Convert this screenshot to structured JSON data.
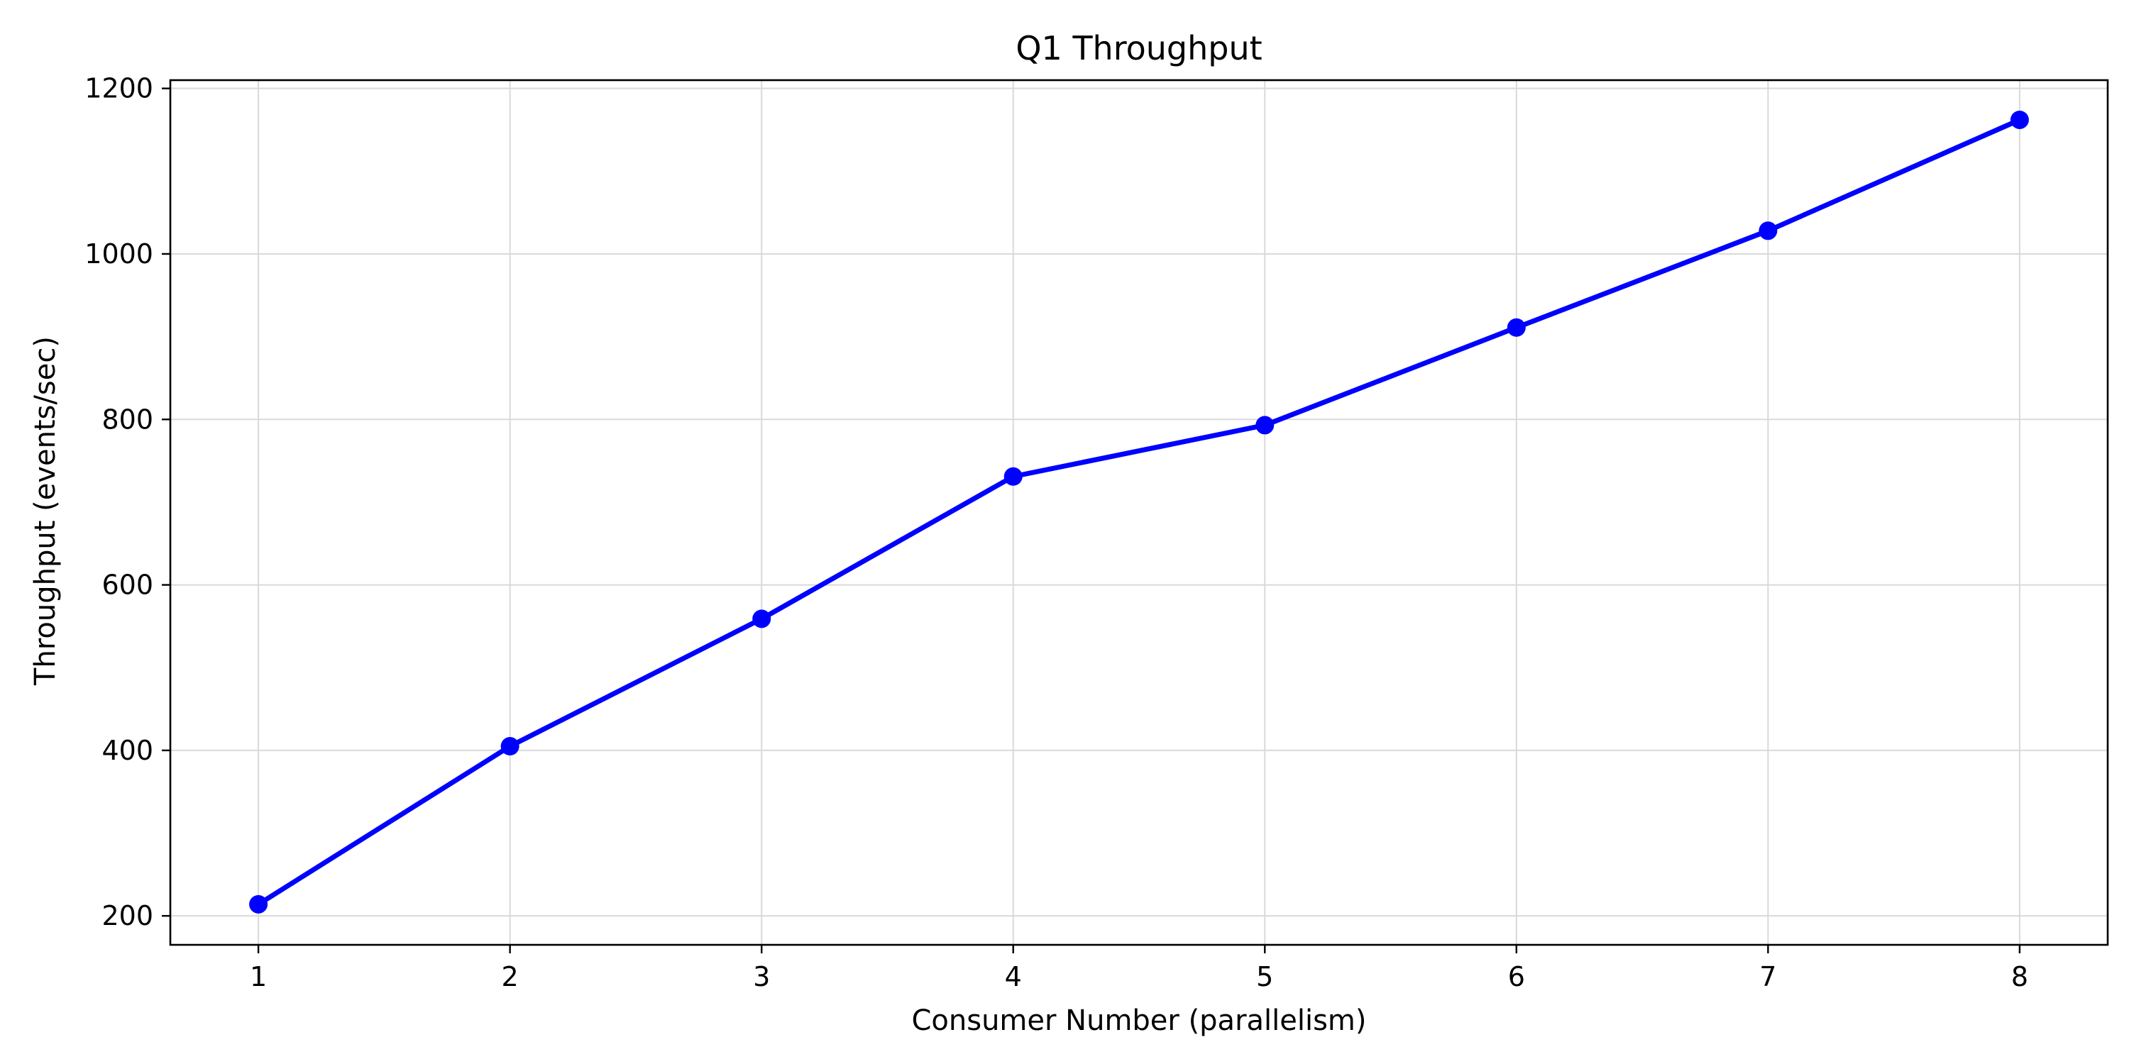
{
  "chart_data": {
    "type": "line",
    "title": "Q1 Throughput",
    "xlabel": "Consumer Number (parallelism)",
    "ylabel": "Throughput (events/sec)",
    "x": [
      1,
      2,
      3,
      4,
      5,
      6,
      7,
      8
    ],
    "series": [
      {
        "values": [
          214,
          405,
          559,
          731,
          793,
          911,
          1028,
          1162
        ],
        "color": "#0000ff",
        "marker": "circle"
      }
    ],
    "xlim": [
      0.65,
      8.35
    ],
    "ylim": [
      165,
      1210
    ],
    "xticks": [
      "1",
      "2",
      "3",
      "4",
      "5",
      "6",
      "7",
      "8"
    ],
    "yticks": [
      "200",
      "400",
      "600",
      "800",
      "1000",
      "1200"
    ],
    "grid": true,
    "legend": "none"
  }
}
